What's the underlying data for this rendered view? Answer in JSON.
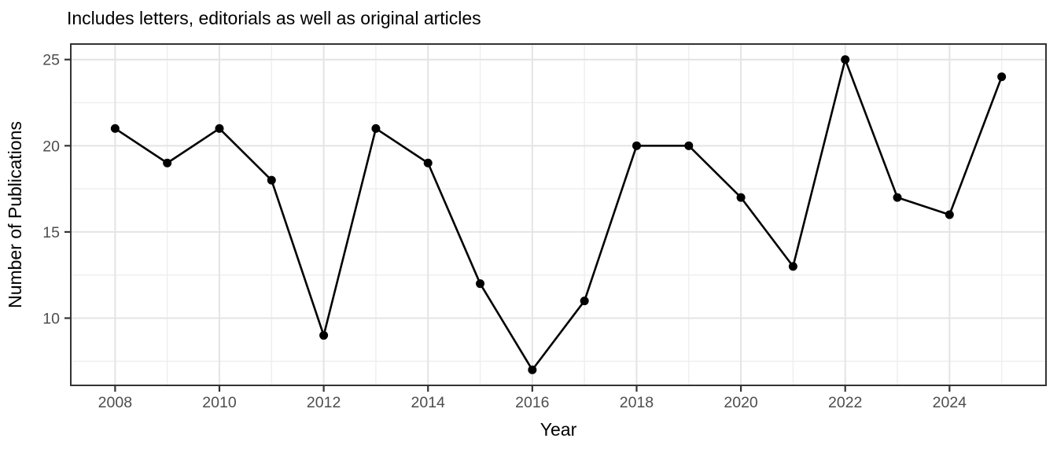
{
  "chart_data": {
    "type": "line",
    "title": "Includes letters, editorials as well as original articles",
    "xlabel": "Year",
    "ylabel": "Number of Publications",
    "x": [
      2008,
      2009,
      2010,
      2011,
      2012,
      2013,
      2014,
      2015,
      2016,
      2017,
      2018,
      2019,
      2020,
      2021,
      2022,
      2023,
      2024,
      2025
    ],
    "values": [
      21,
      19,
      21,
      18,
      9,
      21,
      19,
      12,
      7,
      11,
      20,
      20,
      17,
      13,
      25,
      17,
      16,
      24
    ],
    "xlim": [
      2007.15,
      2025.85
    ],
    "ylim": [
      6.1,
      25.9
    ],
    "x_major_ticks": [
      2008,
      2010,
      2012,
      2014,
      2016,
      2018,
      2020,
      2022,
      2024
    ],
    "x_minor_ticks": [
      2009,
      2011,
      2013,
      2015,
      2017,
      2019,
      2021,
      2023,
      2025
    ],
    "y_major_ticks": [
      10,
      15,
      20,
      25
    ],
    "y_minor_ticks": [
      7.5,
      12.5,
      17.5,
      22.5
    ],
    "grid": true,
    "legend": "none",
    "colors": {
      "line": "#000000",
      "point": "#000000",
      "major_grid": "#e4e4e4",
      "minor_grid": "#efefef",
      "panel_border": "#333333",
      "tick_mark": "#333333",
      "tick_label": "#4d4d4d",
      "background": "#ffffff"
    }
  }
}
